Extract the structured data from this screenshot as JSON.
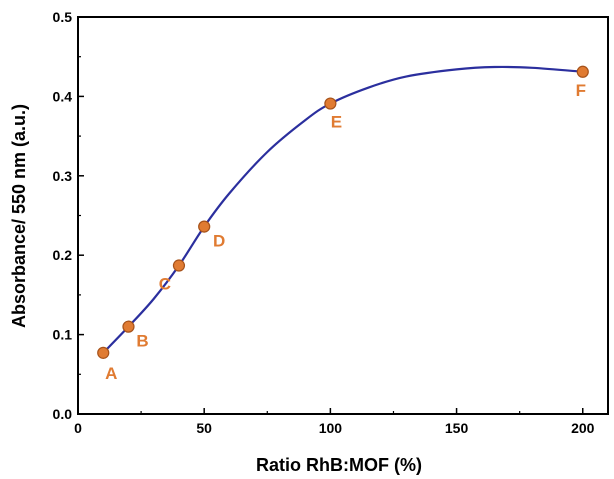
{
  "chart_data": {
    "type": "scatter",
    "xlabel": "Ratio RhB:MOF (%)",
    "ylabel": "Absorbance/ 550 nm (a.u.)",
    "xlim": [
      0,
      210
    ],
    "ylim": [
      0.0,
      0.5
    ],
    "x_ticks": [
      "0",
      "50",
      "100",
      "150",
      "200"
    ],
    "y_ticks": [
      "0.0",
      "0.1",
      "0.2",
      "0.3",
      "0.4",
      "0.5"
    ],
    "grid": false,
    "series": [
      {
        "points": [
          {
            "label": "A",
            "x": 10,
            "y": 0.077
          },
          {
            "label": "B",
            "x": 20,
            "y": 0.11
          },
          {
            "label": "C",
            "x": 40,
            "y": 0.187
          },
          {
            "label": "D",
            "x": 50,
            "y": 0.236
          },
          {
            "label": "E",
            "x": 100,
            "y": 0.391
          },
          {
            "label": "F",
            "x": 200,
            "y": 0.431
          }
        ],
        "fit_curve": [
          [
            10,
            0.077
          ],
          [
            20,
            0.11
          ],
          [
            30,
            0.145
          ],
          [
            40,
            0.187
          ],
          [
            50,
            0.236
          ],
          [
            60,
            0.278
          ],
          [
            75,
            0.33
          ],
          [
            90,
            0.37
          ],
          [
            100,
            0.391
          ],
          [
            115,
            0.411
          ],
          [
            130,
            0.425
          ],
          [
            150,
            0.434
          ],
          [
            165,
            0.437
          ],
          [
            180,
            0.436
          ],
          [
            200,
            0.431
          ]
        ]
      }
    ],
    "colors": {
      "curve": "#2b2f9e",
      "marker_fill": "#e07b32",
      "marker_edge": "#a6521a",
      "label": "#e07b32"
    }
  }
}
